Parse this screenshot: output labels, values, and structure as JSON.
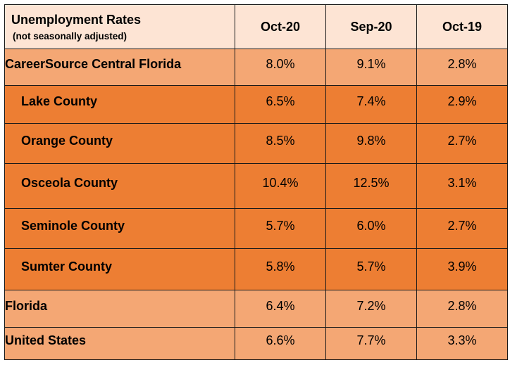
{
  "chart_data": {
    "type": "table",
    "title": "Unemployment Rates",
    "subtitle": "(not seasonally adjusted)",
    "columns": [
      "Oct-20",
      "Sep-20",
      "Oct-19"
    ],
    "rows": [
      {
        "label": "CareerSource Central Florida",
        "values": [
          "8.0%",
          "9.1%",
          "2.8%"
        ]
      },
      {
        "label": "Lake County",
        "values": [
          "6.5%",
          "7.4%",
          "2.9%"
        ]
      },
      {
        "label": "Orange County",
        "values": [
          "8.5%",
          "9.8%",
          "2.7%"
        ]
      },
      {
        "label": "Osceola County",
        "values": [
          "10.4%",
          "12.5%",
          "3.1%"
        ]
      },
      {
        "label": "Seminole County",
        "values": [
          "5.7%",
          "6.0%",
          "2.7%"
        ]
      },
      {
        "label": "Sumter County",
        "values": [
          "5.8%",
          "5.7%",
          "3.9%"
        ]
      },
      {
        "label": "Florida",
        "values": [
          "6.4%",
          "7.2%",
          "2.8%"
        ]
      },
      {
        "label": "United States",
        "values": [
          "6.6%",
          "7.7%",
          "3.3%"
        ]
      }
    ]
  },
  "colors": {
    "header_bg": "#fde4d4",
    "region_row_bg": "#f4a774",
    "county_row_bg": "#ed7e33"
  }
}
